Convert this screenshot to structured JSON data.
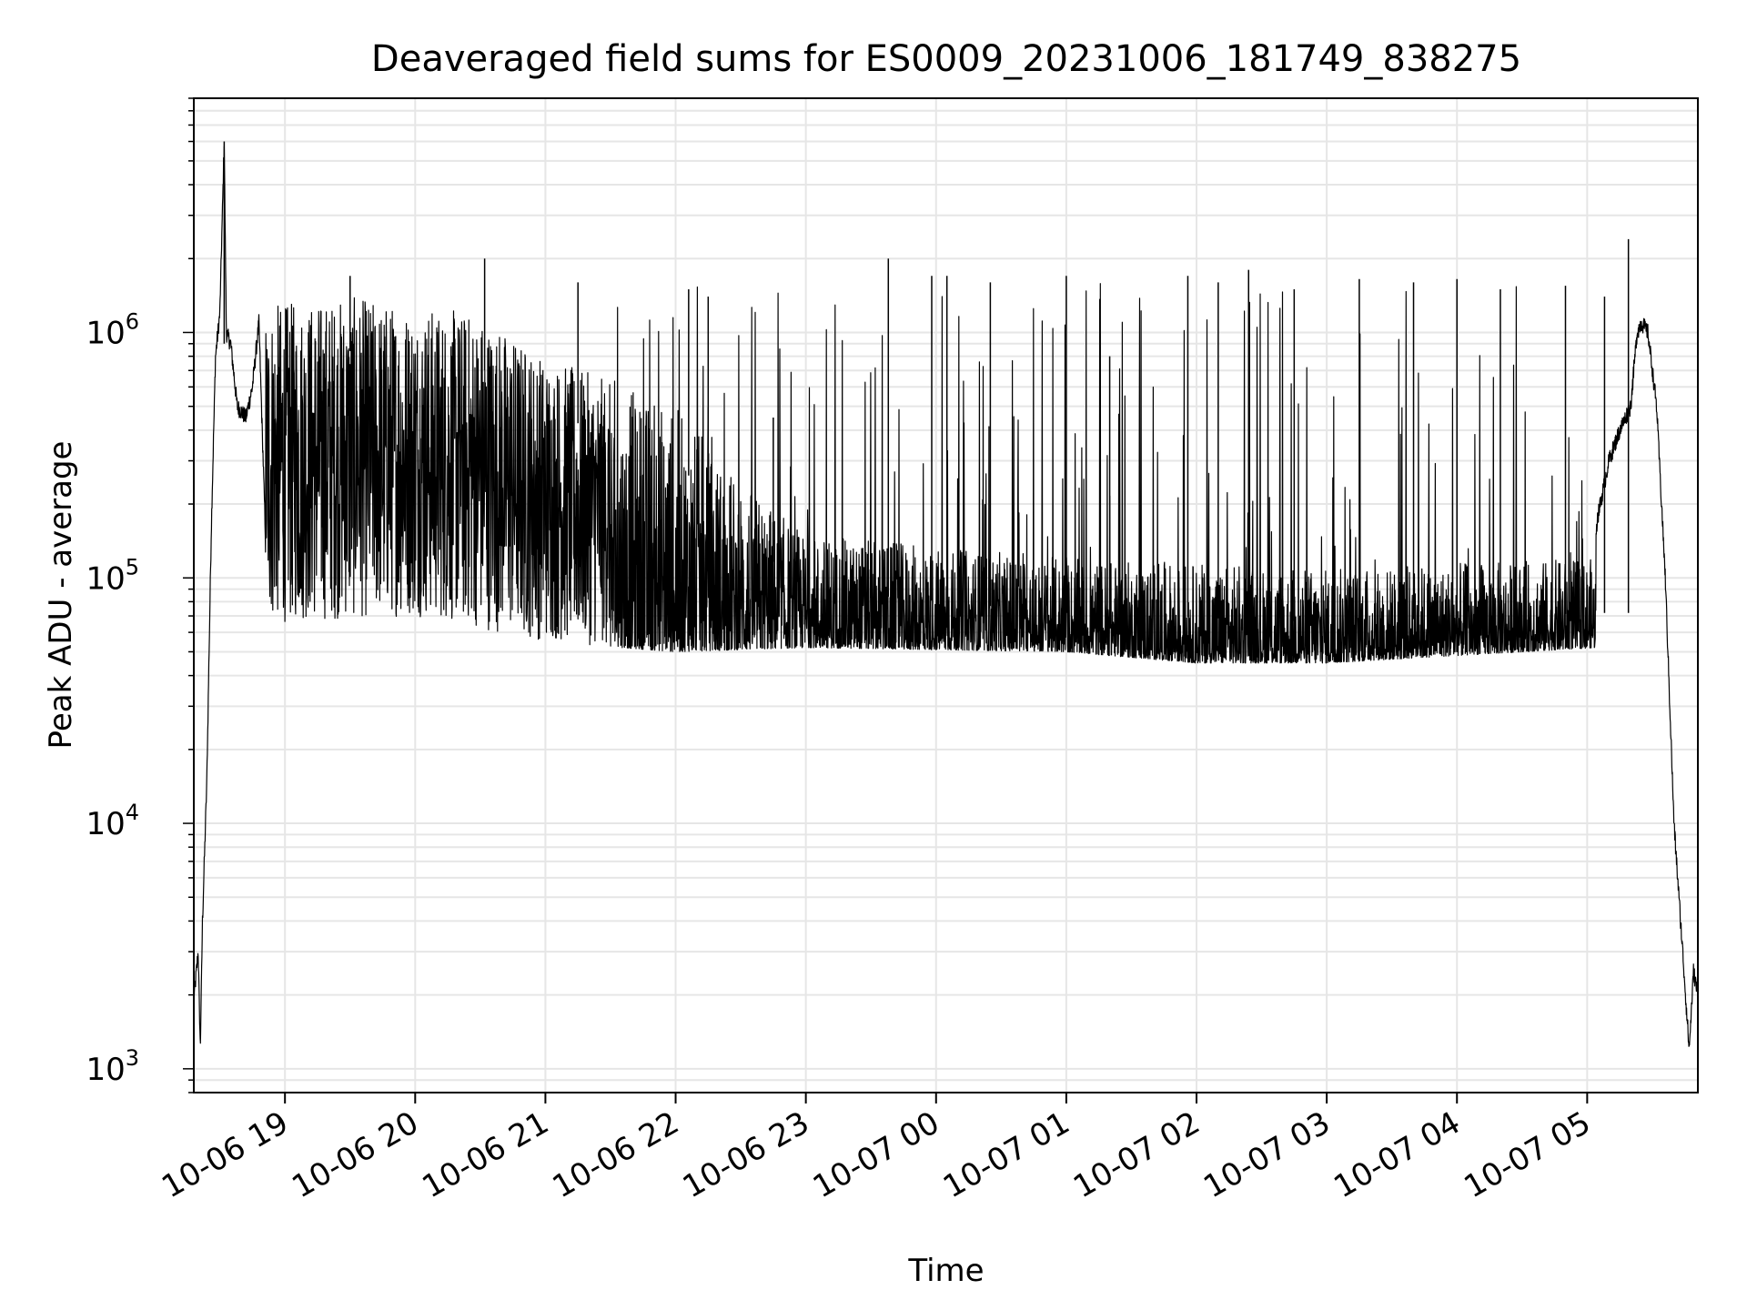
{
  "chart_data": {
    "type": "line",
    "title": "Deaveraged field sums for ES0009_20231006_181749_838275",
    "xlabel": "Time",
    "ylabel": "Peak ADU - average",
    "yscale": "log",
    "xlim": [
      "2023-10-06 18:18",
      "2023-10-07 05:51"
    ],
    "ylim": [
      800,
      9000000
    ],
    "grid": true,
    "line_color": "#000000",
    "grid_color": "#e6e6e6",
    "x_ticks": [
      {
        "value": "2023-10-06 19:00",
        "label": "10-06 19"
      },
      {
        "value": "2023-10-06 20:00",
        "label": "10-06 20"
      },
      {
        "value": "2023-10-06 21:00",
        "label": "10-06 21"
      },
      {
        "value": "2023-10-06 22:00",
        "label": "10-06 22"
      },
      {
        "value": "2023-10-06 23:00",
        "label": "10-06 23"
      },
      {
        "value": "2023-10-07 00:00",
        "label": "10-07 00"
      },
      {
        "value": "2023-10-07 01:00",
        "label": "10-07 01"
      },
      {
        "value": "2023-10-07 02:00",
        "label": "10-07 02"
      },
      {
        "value": "2023-10-07 03:00",
        "label": "10-07 03"
      },
      {
        "value": "2023-10-07 04:00",
        "label": "10-07 04"
      },
      {
        "value": "2023-10-07 05:00",
        "label": "10-07 05"
      }
    ],
    "y_ticks": [
      {
        "value": 1000,
        "base": "10",
        "exp": "3"
      },
      {
        "value": 10000,
        "base": "10",
        "exp": "4"
      },
      {
        "value": 100000,
        "base": "10",
        "exp": "5"
      },
      {
        "value": 1000000,
        "base": "10",
        "exp": "6"
      }
    ],
    "series": [
      {
        "points": [
          [
            "2023-10-06 18:18",
            1900
          ],
          [
            "2023-10-06 18:20",
            3000
          ],
          [
            "2023-10-06 18:21",
            1200
          ],
          [
            "2023-10-06 18:22",
            4000
          ],
          [
            "2023-10-06 18:24",
            15000
          ],
          [
            "2023-10-06 18:26",
            150000
          ],
          [
            "2023-10-06 18:28",
            800000
          ],
          [
            "2023-10-06 18:30",
            1200000
          ],
          [
            "2023-10-06 18:32",
            6000000
          ],
          [
            "2023-10-06 18:33",
            1000000
          ],
          [
            "2023-10-06 18:35",
            900000
          ],
          [
            "2023-10-06 18:38",
            500000
          ],
          [
            "2023-10-06 18:42",
            450000
          ],
          [
            "2023-10-06 18:45",
            600000
          ],
          [
            "2023-10-06 18:48",
            1100000
          ],
          [
            "2023-10-06 18:51",
            150000
          ],
          [
            "2023-10-06 18:55",
            120000
          ],
          [
            "2023-10-06 18:58",
            200000
          ],
          [
            "2023-10-06 19:00",
            600000
          ],
          [
            "2023-10-06 19:10",
            350000
          ],
          [
            "2023-10-06 19:20",
            250000
          ],
          [
            "2023-10-06 19:30",
            300000
          ],
          [
            "2023-10-06 19:40",
            350000
          ],
          [
            "2023-10-06 19:50",
            300000
          ],
          [
            "2023-10-06 20:00",
            350000
          ],
          [
            "2023-10-06 20:10",
            330000
          ],
          [
            "2023-10-06 20:20",
            300000
          ],
          [
            "2023-10-06 20:30",
            280000
          ],
          [
            "2023-10-06 20:40",
            300000
          ],
          [
            "2023-10-06 20:50",
            260000
          ],
          [
            "2023-10-06 21:00",
            200000
          ],
          [
            "2023-10-06 21:15",
            170000
          ],
          [
            "2023-10-06 21:30",
            160000
          ],
          [
            "2023-10-06 21:45",
            140000
          ],
          [
            "2023-10-06 22:00",
            130000
          ],
          [
            "2023-10-06 22:20",
            120000
          ],
          [
            "2023-10-06 22:40",
            90000
          ],
          [
            "2023-10-06 23:00",
            85000
          ],
          [
            "2023-10-06 23:30",
            80000
          ],
          [
            "2023-10-07 00:00",
            78000
          ],
          [
            "2023-10-07 00:30",
            76000
          ],
          [
            "2023-10-07 01:00",
            75000
          ],
          [
            "2023-10-07 01:30",
            72000
          ],
          [
            "2023-10-07 02:00",
            70000
          ],
          [
            "2023-10-07 02:30",
            68000
          ],
          [
            "2023-10-07 03:00",
            66000
          ],
          [
            "2023-10-07 03:30",
            68000
          ],
          [
            "2023-10-07 04:00",
            70000
          ],
          [
            "2023-10-07 04:30",
            72000
          ],
          [
            "2023-10-07 04:55",
            75000
          ],
          [
            "2023-10-07 05:00",
            90000
          ],
          [
            "2023-10-07 05:05",
            180000
          ],
          [
            "2023-10-07 05:10",
            300000
          ],
          [
            "2023-10-07 05:15",
            400000
          ],
          [
            "2023-10-07 05:20",
            500000
          ],
          [
            "2023-10-07 05:23",
            1000000
          ],
          [
            "2023-10-07 05:25",
            1100000
          ],
          [
            "2023-10-07 05:28",
            1000000
          ],
          [
            "2023-10-07 05:32",
            500000
          ],
          [
            "2023-10-07 05:36",
            100000
          ],
          [
            "2023-10-07 05:40",
            10000
          ],
          [
            "2023-10-07 05:44",
            3000
          ],
          [
            "2023-10-07 05:47",
            1200
          ],
          [
            "2023-10-07 05:49",
            2500
          ],
          [
            "2023-10-07 05:51",
            2000
          ]
        ],
        "noise_band": {
          "from": "2023-10-06 18:51",
          "to": "2023-10-07 05:04",
          "low": [
            [
              "2023-10-06 18:51",
              65000
            ],
            [
              "2023-10-06 20:00",
              70000
            ],
            [
              "2023-10-06 21:00",
              55000
            ],
            [
              "2023-10-06 22:00",
              50000
            ],
            [
              "2023-10-06 23:00",
              52000
            ],
            [
              "2023-10-07 01:00",
              50000
            ],
            [
              "2023-10-07 02:00",
              45000
            ],
            [
              "2023-10-07 03:00",
              45000
            ],
            [
              "2023-10-07 05:04",
              52000
            ]
          ],
          "high": [
            [
              "2023-10-06 18:51",
              1300000
            ],
            [
              "2023-10-06 19:30",
              1400000
            ],
            [
              "2023-10-06 20:30",
              1200000
            ],
            [
              "2023-10-06 21:00",
              800000
            ],
            [
              "2023-10-06 22:00",
              500000
            ],
            [
              "2023-10-06 22:30",
              250000
            ],
            [
              "2023-10-06 23:00",
              150000
            ],
            [
              "2023-10-07 01:00",
              120000
            ],
            [
              "2023-10-07 03:00",
              110000
            ],
            [
              "2023-10-07 05:04",
              120000
            ]
          ]
        },
        "spikes": [
          [
            "2023-10-06 20:32",
            2000000
          ],
          [
            "2023-10-06 23:38",
            2000000
          ],
          [
            "2023-10-06 23:58",
            1700000
          ],
          [
            "2023-10-07 00:05",
            1700000
          ],
          [
            "2023-10-07 01:00",
            1700000
          ],
          [
            "2023-10-07 01:56",
            1700000
          ],
          [
            "2023-10-07 02:24",
            1800000
          ],
          [
            "2023-10-07 03:15",
            1650000
          ],
          [
            "2023-10-07 04:00",
            1650000
          ],
          [
            "2023-10-07 05:19",
            2400000
          ],
          [
            "2023-10-06 19:30",
            1700000
          ],
          [
            "2023-10-06 21:15",
            1600000
          ],
          [
            "2023-10-06 22:06",
            1500000
          ],
          [
            "2023-10-06 22:15",
            1400000
          ],
          [
            "2023-10-06 22:45",
            450000
          ],
          [
            "2023-10-07 00:25",
            1600000
          ],
          [
            "2023-10-07 01:20",
            800000
          ],
          [
            "2023-10-07 02:10",
            1600000
          ],
          [
            "2023-10-07 02:45",
            1500000
          ],
          [
            "2023-10-07 03:40",
            1600000
          ],
          [
            "2023-10-07 04:20",
            1500000
          ],
          [
            "2023-10-07 04:50",
            1550000
          ],
          [
            "2023-10-07 05:08",
            1400000
          ]
        ]
      }
    ]
  }
}
